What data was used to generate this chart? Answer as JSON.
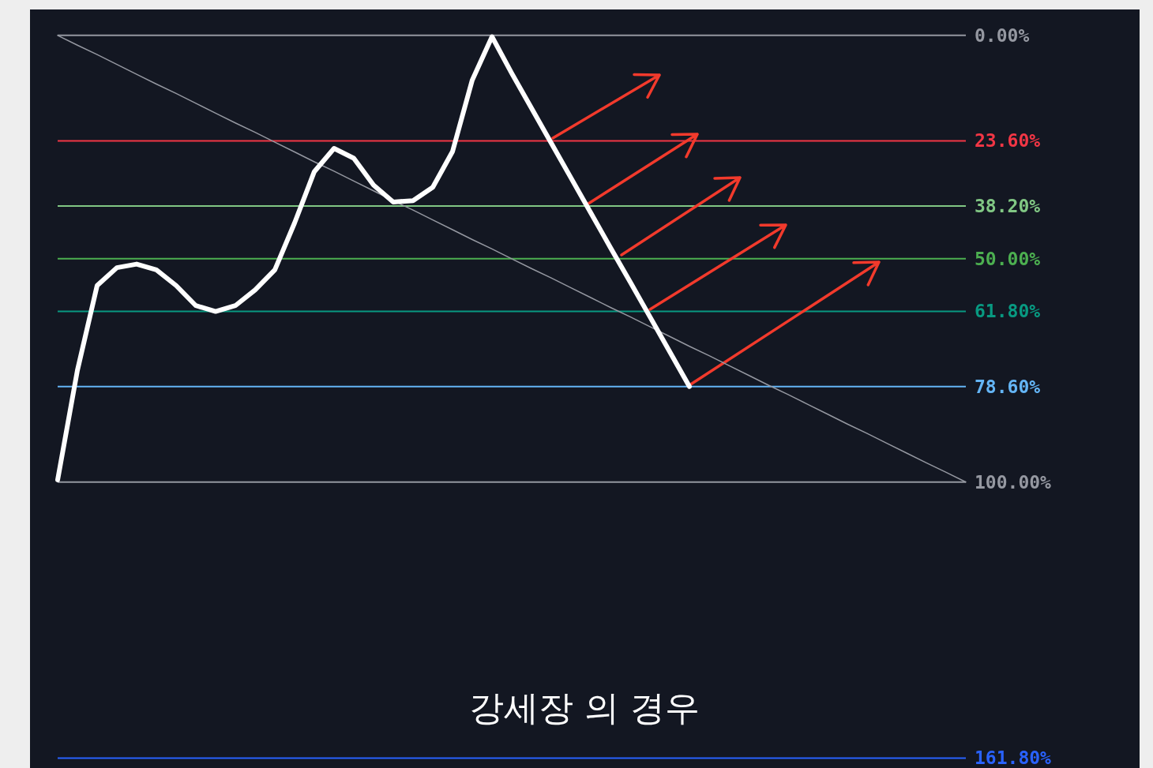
{
  "chart_data": {
    "type": "line",
    "title": "강세장 의 경우",
    "categories": [
      null,
      null,
      null,
      null,
      null,
      null,
      null,
      null,
      null,
      null,
      null,
      null,
      null,
      null,
      null,
      null,
      null,
      null,
      null,
      null,
      null,
      null,
      null,
      null,
      null,
      null,
      null,
      null,
      null,
      null,
      null,
      null,
      null,
      null,
      null,
      null,
      null,
      null,
      null,
      null,
      null,
      null,
      null,
      null,
      null,
      null,
      null
    ],
    "ylim": [
      164,
      -5.8
    ],
    "yticks": [
      {
        "value": 0,
        "label": "0.00%"
      },
      {
        "value": 23.6,
        "label": "23.60%"
      },
      {
        "value": 38.2,
        "label": "38.20%"
      },
      {
        "value": 50,
        "label": "50.00%"
      },
      {
        "value": 61.8,
        "label": "61.80%"
      },
      {
        "value": 78.6,
        "label": "78.60%"
      },
      {
        "value": 100,
        "label": "100.00%"
      },
      {
        "value": 161.8,
        "label": "161.80%"
      }
    ],
    "tick_labels": "y",
    "series": [
      {
        "color": "#ffffff",
        "values": [
          99.5,
          75,
          56,
          52,
          51.2,
          52.5,
          56,
          60.5,
          61.8,
          60.5,
          57,
          52.5,
          42,
          30.5,
          25.3,
          27.5,
          33.5,
          37.3,
          37,
          34,
          26,
          10,
          0.3,
          8.5,
          16.3,
          24.1,
          31.9,
          39.7,
          47.5,
          55.2,
          63,
          70.8,
          78.6,
          null,
          null,
          null,
          null,
          null,
          null,
          null,
          null,
          null,
          null,
          null,
          null,
          null,
          null
        ]
      },
      {
        "color": "#9598a1",
        "values": [
          0,
          2.2,
          4.3,
          6.5,
          8.7,
          10.9,
          13,
          15.2,
          17.4,
          19.6,
          21.7,
          23.9,
          26.1,
          28.3,
          30.4,
          32.6,
          34.8,
          37,
          39.1,
          41.3,
          43.5,
          45.7,
          47.8,
          50,
          52.2,
          54.3,
          56.5,
          58.7,
          60.9,
          63,
          65.2,
          67.4,
          69.6,
          71.7,
          73.9,
          76.1,
          78.3,
          80.4,
          82.6,
          84.8,
          87,
          89.1,
          91.3,
          93.5,
          95.7,
          97.8,
          100
        ]
      }
    ],
    "ref_lines": [
      {
        "axis": "y",
        "value": 0,
        "color": "#9598a1"
      },
      {
        "axis": "y",
        "value": 23.6,
        "color": "#f23645"
      },
      {
        "axis": "y",
        "value": 38.2,
        "color": "#81c784"
      },
      {
        "axis": "y",
        "value": 50,
        "color": "#4caf50"
      },
      {
        "axis": "y",
        "value": 61.8,
        "color": "#089981"
      },
      {
        "axis": "y",
        "value": 78.6,
        "color": "#64b5f6"
      },
      {
        "axis": "y",
        "value": 100,
        "color": "#9598a1"
      },
      {
        "axis": "y",
        "value": 161.8,
        "color": "#2962ff"
      }
    ]
  }
}
